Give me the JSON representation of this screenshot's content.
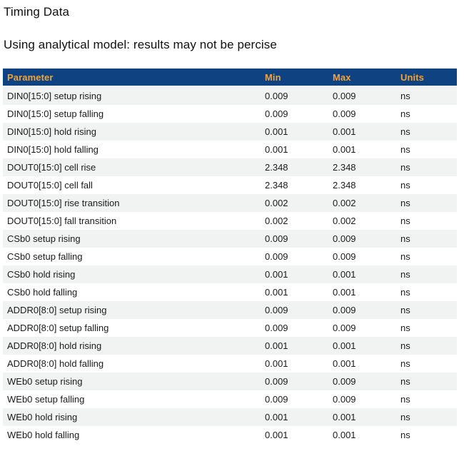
{
  "page": {
    "title": "Timing Data",
    "subtitle": "Using analytical model: results may not be percise"
  },
  "table": {
    "header": {
      "parameter": "Parameter",
      "min": "Min",
      "max": "Max",
      "units": "Units"
    },
    "rows": [
      {
        "parameter": "DIN0[15:0] setup rising",
        "min": "0.009",
        "max": "0.009",
        "units": "ns"
      },
      {
        "parameter": "DIN0[15:0] setup falling",
        "min": "0.009",
        "max": "0.009",
        "units": "ns"
      },
      {
        "parameter": "DIN0[15:0] hold rising",
        "min": "0.001",
        "max": "0.001",
        "units": "ns"
      },
      {
        "parameter": "DIN0[15:0] hold falling",
        "min": "0.001",
        "max": "0.001",
        "units": "ns"
      },
      {
        "parameter": "DOUT0[15:0] cell rise",
        "min": "2.348",
        "max": "2.348",
        "units": "ns"
      },
      {
        "parameter": "DOUT0[15:0] cell fall",
        "min": "2.348",
        "max": "2.348",
        "units": "ns"
      },
      {
        "parameter": "DOUT0[15:0] rise transition",
        "min": "0.002",
        "max": "0.002",
        "units": "ns"
      },
      {
        "parameter": "DOUT0[15:0] fall transition",
        "min": "0.002",
        "max": "0.002",
        "units": "ns"
      },
      {
        "parameter": "CSb0 setup rising",
        "min": "0.009",
        "max": "0.009",
        "units": "ns"
      },
      {
        "parameter": "CSb0 setup falling",
        "min": "0.009",
        "max": "0.009",
        "units": "ns"
      },
      {
        "parameter": "CSb0 hold rising",
        "min": "0.001",
        "max": "0.001",
        "units": "ns"
      },
      {
        "parameter": "CSb0 hold falling",
        "min": "0.001",
        "max": "0.001",
        "units": "ns"
      },
      {
        "parameter": "ADDR0[8:0] setup rising",
        "min": "0.009",
        "max": "0.009",
        "units": "ns"
      },
      {
        "parameter": "ADDR0[8:0] setup falling",
        "min": "0.009",
        "max": "0.009",
        "units": "ns"
      },
      {
        "parameter": "ADDR0[8:0] hold rising",
        "min": "0.001",
        "max": "0.001",
        "units": "ns"
      },
      {
        "parameter": "ADDR0[8:0] hold falling",
        "min": "0.001",
        "max": "0.001",
        "units": "ns"
      },
      {
        "parameter": "WEb0 setup rising",
        "min": "0.009",
        "max": "0.009",
        "units": "ns"
      },
      {
        "parameter": "WEb0 setup falling",
        "min": "0.009",
        "max": "0.009",
        "units": "ns"
      },
      {
        "parameter": "WEb0 hold rising",
        "min": "0.001",
        "max": "0.001",
        "units": "ns"
      },
      {
        "parameter": "WEb0 hold falling",
        "min": "0.001",
        "max": "0.001",
        "units": "ns"
      }
    ]
  },
  "colors": {
    "header_bg": "#0e4280",
    "header_text": "#efa43d",
    "stripe_bg": "#f1f2f2",
    "row_text": "#1b1b1b"
  }
}
